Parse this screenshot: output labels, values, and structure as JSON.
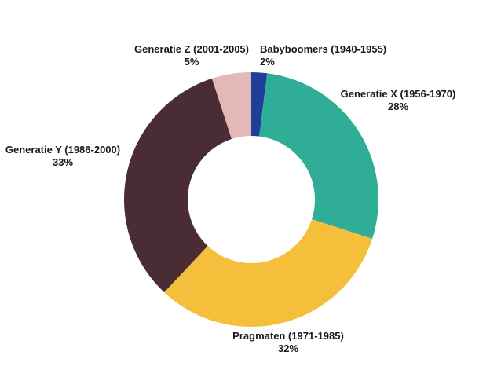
{
  "chart_data": {
    "type": "pie",
    "style": "donut",
    "slices": [
      {
        "label": "Babyboomers (1940-1955)",
        "value": 2,
        "value_label": "2%",
        "color": "#1f3f98"
      },
      {
        "label": "Generatie X (1956-1970)",
        "value": 28,
        "value_label": "28%",
        "color": "#30ad96"
      },
      {
        "label": "Pragmaten (1971-1985)",
        "value": 32,
        "value_label": "32%",
        "color": "#f5bf3b"
      },
      {
        "label": "Generatie Y (1986-2000)",
        "value": 33,
        "value_label": "33%",
        "color": "#4a2c34"
      },
      {
        "label": "Generatie Z (2001-2005)",
        "value": 5,
        "value_label": "5%",
        "color": "#e4b8b7"
      }
    ]
  }
}
